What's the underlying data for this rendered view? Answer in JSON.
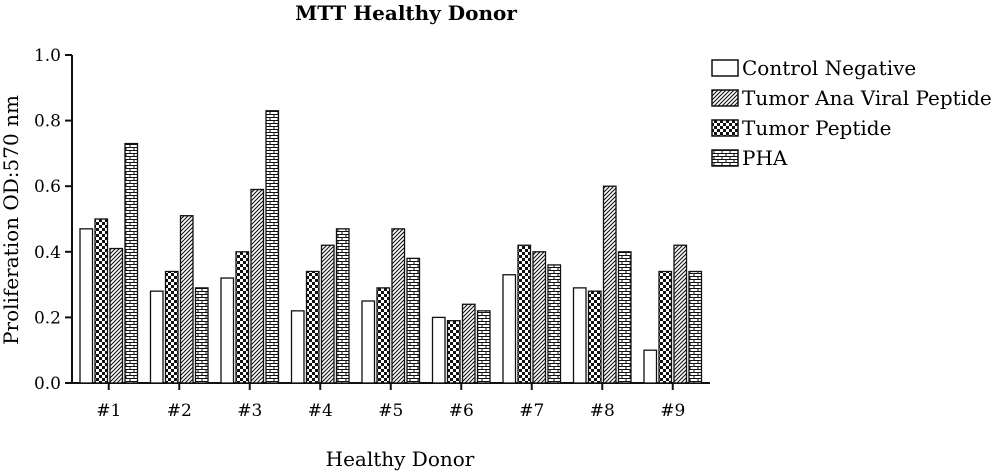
{
  "chart_data": {
    "type": "bar",
    "title": "MTT Healthy Donor",
    "xlabel": "Healthy Donor",
    "ylabel": "Proliferation OD:570 nm",
    "ylim": [
      0,
      1.0
    ],
    "yticks": [
      "0.0",
      "0.2",
      "0.4",
      "0.6",
      "0.8",
      "1.0"
    ],
    "categories": [
      "#1",
      "#2",
      "#3",
      "#4",
      "#5",
      "#6",
      "#7",
      "#8",
      "#9"
    ],
    "legend_position": "right",
    "series": [
      {
        "name": "Control Negative",
        "pattern": "white",
        "values": [
          0.47,
          0.28,
          0.32,
          0.22,
          0.25,
          0.2,
          0.33,
          0.29,
          0.1
        ]
      },
      {
        "name": "Tumor Peptide",
        "pattern": "checker",
        "values": [
          0.5,
          0.34,
          0.4,
          0.34,
          0.29,
          0.19,
          0.42,
          0.28,
          0.34
        ]
      },
      {
        "name": "Tumor Ana Viral Peptide",
        "pattern": "diagonal",
        "values": [
          0.41,
          0.51,
          0.59,
          0.42,
          0.47,
          0.24,
          0.4,
          0.6,
          0.42
        ]
      },
      {
        "name": "PHA",
        "pattern": "brick",
        "values": [
          0.73,
          0.29,
          0.83,
          0.47,
          0.38,
          0.22,
          0.36,
          0.4,
          0.34
        ]
      }
    ],
    "legend_order": [
      "Control Negative",
      "Tumor Ana Viral Peptide",
      "Tumor Peptide",
      "PHA"
    ]
  }
}
